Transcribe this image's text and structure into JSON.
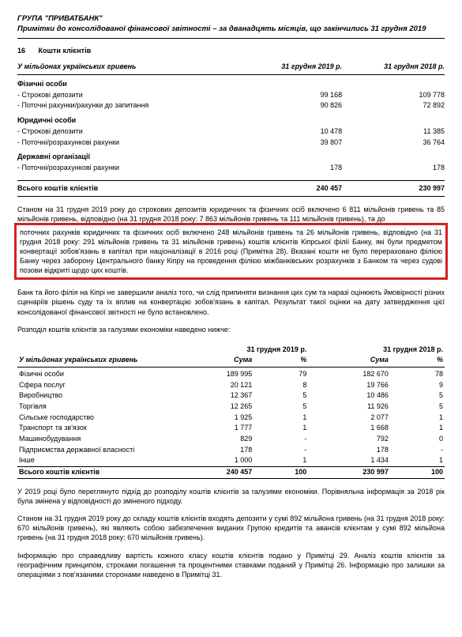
{
  "header": {
    "group": "ГРУПА \"ПРИВАТБАНК\"",
    "subtitle": "Примітки до консолідованої фінансової звітності – за дванадцять місяців, що закінчились 31 грудня 2019"
  },
  "section": {
    "num": "16",
    "title": "Кошти клієнтів"
  },
  "t1": {
    "unit": "У мільйонах українських гривень",
    "col1": "31 грудня 2019 р.",
    "col2": "31 грудня 2018 р.",
    "g1": "Фізичні особи",
    "g1r1": {
      "l": "- Строкові депозити",
      "a": "99 168",
      "b": "109 778"
    },
    "g1r2": {
      "l": "- Поточні рахунки/рахунки до запитання",
      "a": "90 826",
      "b": "72 892"
    },
    "g2": "Юридичні особи",
    "g2r1": {
      "l": "- Строкові депозити",
      "a": "10 478",
      "b": "11 385"
    },
    "g2r2": {
      "l": "- Поточні/розрахункові рахунки",
      "a": "39 807",
      "b": "36 764"
    },
    "g3": "Державні організації",
    "g3r1": {
      "l": "- Поточні/розрахункові рахунки",
      "a": "178",
      "b": "178"
    },
    "total": {
      "l": "Всього коштів клієнтів",
      "a": "240 457",
      "b": "230 997"
    }
  },
  "p1a": "Станом на 31 грудня 2019 року до строкових депозитів юридичних та фізичних осіб включено 6 811 мільйонів гривень та 85 мільйонів гривень, відповідно (на 31 грудня 2018 року: 7 863 мільйонів гривень та 111 мільйонів гривень), та до",
  "p1b": "поточних рахунків юридичних та фізичних осіб включено 248 мільйонів гривень та 26 мільйонів гривень, відповідно (на 31 грудня 2018 року: 291 мільйонів гривень та 31 мільйонів гривень) коштів клієнтів Кіпрської філії Банку, які були предметом конвертації зобов'язань в капітал при націоналізації в 2016 році (Примітка 28). Вказані кошти не було перераховано філією Банку через заборону Центрального банку Кіпру на проведення філією міжбанківських розрахунків з Банком та через судові позови відкриті щодо цих коштів.",
  "p2": "Банк та його філія на Кіпрі не завершили аналіз того, чи слід припиняти визнання цих сум та наразі оцінюють ймовірності різних сценаріїв рішень суду та їх вплив на конвертацію зобов'язань в капітал. Результат такої оцінки на дату затвердження цієї консолідованої фінансової звітності не було встановлено.",
  "p3": "Розподіл коштів клієнтів за галузями економіки наведено нижче:",
  "t2": {
    "unit": "У мільйонах українських гривень",
    "h1": "31 грудня 2019 р.",
    "h2": "31 грудня 2018 р.",
    "sum": "Сума",
    "pct": "%",
    "rows": [
      {
        "l": "Фізичні особи",
        "a": "189 995",
        "ap": "79",
        "b": "182 670",
        "bp": "78"
      },
      {
        "l": "Сфера послуг",
        "a": "20 121",
        "ap": "8",
        "b": "19 766",
        "bp": "9"
      },
      {
        "l": "Виробництво",
        "a": "12 367",
        "ap": "5",
        "b": "10 486",
        "bp": "5"
      },
      {
        "l": "Торгівля",
        "a": "12 265",
        "ap": "5",
        "b": "11 926",
        "bp": "5"
      },
      {
        "l": "Сільське господарство",
        "a": "1 925",
        "ap": "1",
        "b": "2 077",
        "bp": "1"
      },
      {
        "l": "Транспорт та зв'язок",
        "a": "1 777",
        "ap": "1",
        "b": "1 668",
        "bp": "1"
      },
      {
        "l": "Машинобудування",
        "a": "829",
        "ap": "-",
        "b": "792",
        "bp": "0"
      },
      {
        "l": "Підприємства державної власності",
        "a": "178",
        "ap": "-",
        "b": "178",
        "bp": "-"
      },
      {
        "l": "Інше",
        "a": "1 000",
        "ap": "1",
        "b": "1 434",
        "bp": "1"
      }
    ],
    "total": {
      "l": "Всього коштів клієнтів",
      "a": "240 457",
      "ap": "100",
      "b": "230 997",
      "bp": "100"
    }
  },
  "p4": "У 2019 році було переглянуто підхід до розподілу коштів клієнтів за галузями економіки. Порівняльна інформація за 2018 рік була змінена у відповідності до зміненого підходу.",
  "p5": "Станом на 31 грудня 2019 року до складу коштів клієнтів входять депозити у сумі 892 мільйона гривень (на 31 грудня 2018 року: 670 мільйонів гривень), які являють собою забезпечення виданих Групою кредитів та авансів клієнтам у сумі 892 мільйона гривень (на 31 грудня 2018 року: 670 мільйонів гривень).",
  "p6": "Інформацію про справедливу вартість кожного класу коштів клієнтів подано у Примітці 29. Аналіз коштів клієнтів за географічним принципом, строками погашення та процентними ставками поданий у Примітці 26. Інформацію про залишки за операціями з пов'язаними сторонами наведено в Примітці 31."
}
